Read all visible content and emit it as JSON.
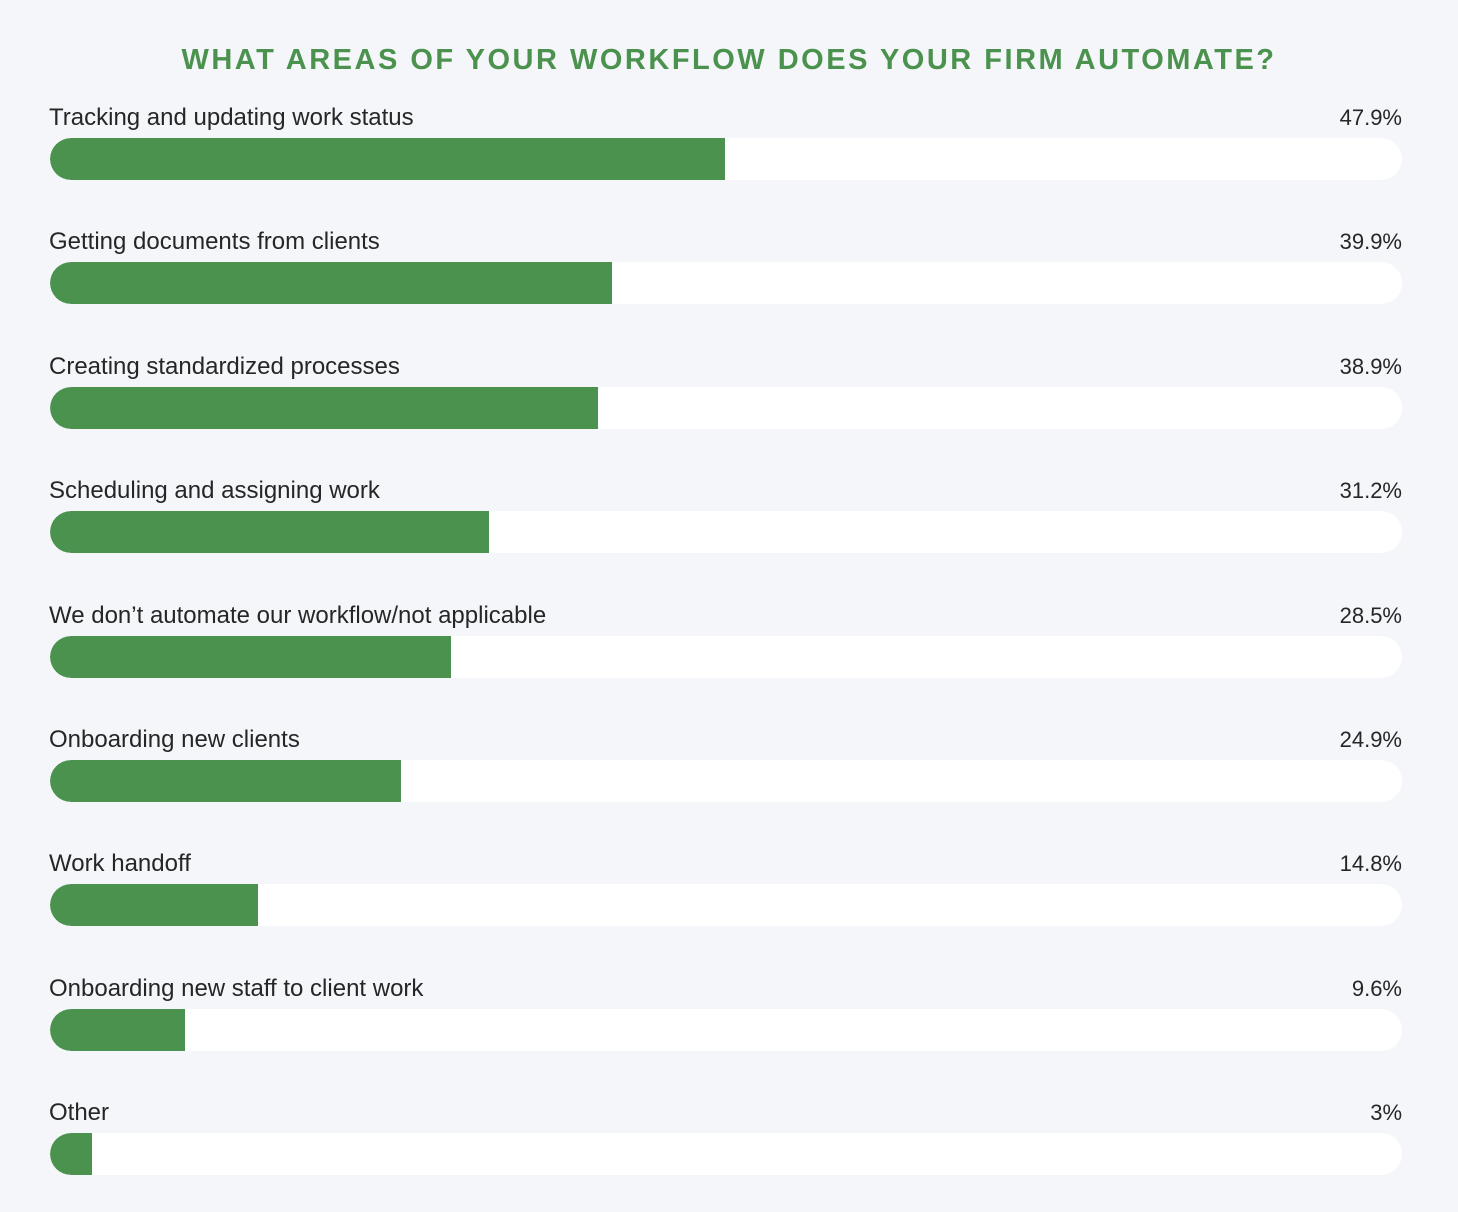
{
  "chart_data": {
    "type": "bar",
    "orientation": "horizontal",
    "title": "WHAT AREAS OF YOUR WORKFLOW DOES YOUR FIRM AUTOMATE?",
    "categories": [
      "Tracking and updating work status",
      "Getting documents from clients",
      "Creating standardized processes",
      "Scheduling and assigning work",
      "We don’t automate our workflow/not applicable",
      "Onboarding new clients",
      "Work handoff",
      "Onboarding new staff to client work",
      "Other"
    ],
    "values": [
      47.9,
      39.9,
      38.9,
      31.2,
      28.5,
      24.9,
      14.8,
      9.6,
      3
    ],
    "value_labels": [
      "47.9%",
      "39.9%",
      "38.9%",
      "31.2%",
      "28.5%",
      "24.9%",
      "14.8%",
      "9.6%",
      "3%"
    ],
    "unit": "%",
    "xlim": [
      0,
      96
    ],
    "grid": false,
    "legend": "none",
    "colors": {
      "bar": "#4a924d",
      "track": "#ffffff",
      "background": "#f4f6fa",
      "title": "#4a924d",
      "text": "#262626"
    }
  }
}
